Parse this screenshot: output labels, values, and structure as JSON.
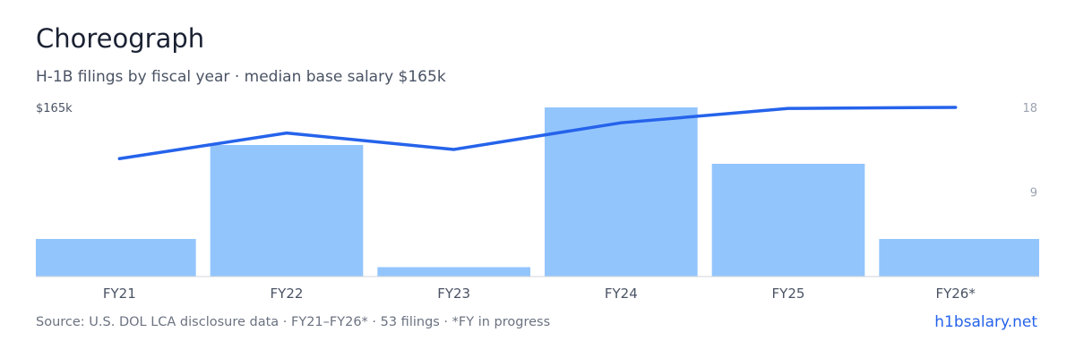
{
  "header": {
    "title": "Choreograph",
    "subtitle": "H-1B filings by fiscal year · median base salary $165k"
  },
  "footer": {
    "source": "Source: U.S. DOL LCA disclosure data · FY21–FY26* · 53 filings · *FY in progress",
    "site": "h1bsalary.net"
  },
  "colors": {
    "bar": "#93c5fd",
    "line": "#2563eb",
    "axis_text": "#4a5364",
    "right_tick_text": "#9ca3af",
    "baseline": "#d1d5db"
  },
  "chart_data": {
    "type": "bar",
    "categories": [
      "FY21",
      "FY22",
      "FY23",
      "FY24",
      "FY25",
      "FY26*"
    ],
    "series": [
      {
        "type": "bar",
        "axis": "right",
        "values": [
          4,
          14,
          1,
          18,
          12,
          4
        ]
      },
      {
        "type": "line",
        "axis": "left",
        "values": [
          115,
          140,
          124,
          150,
          164,
          165
        ]
      }
    ],
    "left_axis": {
      "top_label": "$165k",
      "range": [
        0,
        165
      ]
    },
    "right_axis": {
      "ticks": [
        "18",
        "9"
      ],
      "range": [
        0,
        18
      ]
    },
    "grid": false,
    "legend": "none"
  }
}
